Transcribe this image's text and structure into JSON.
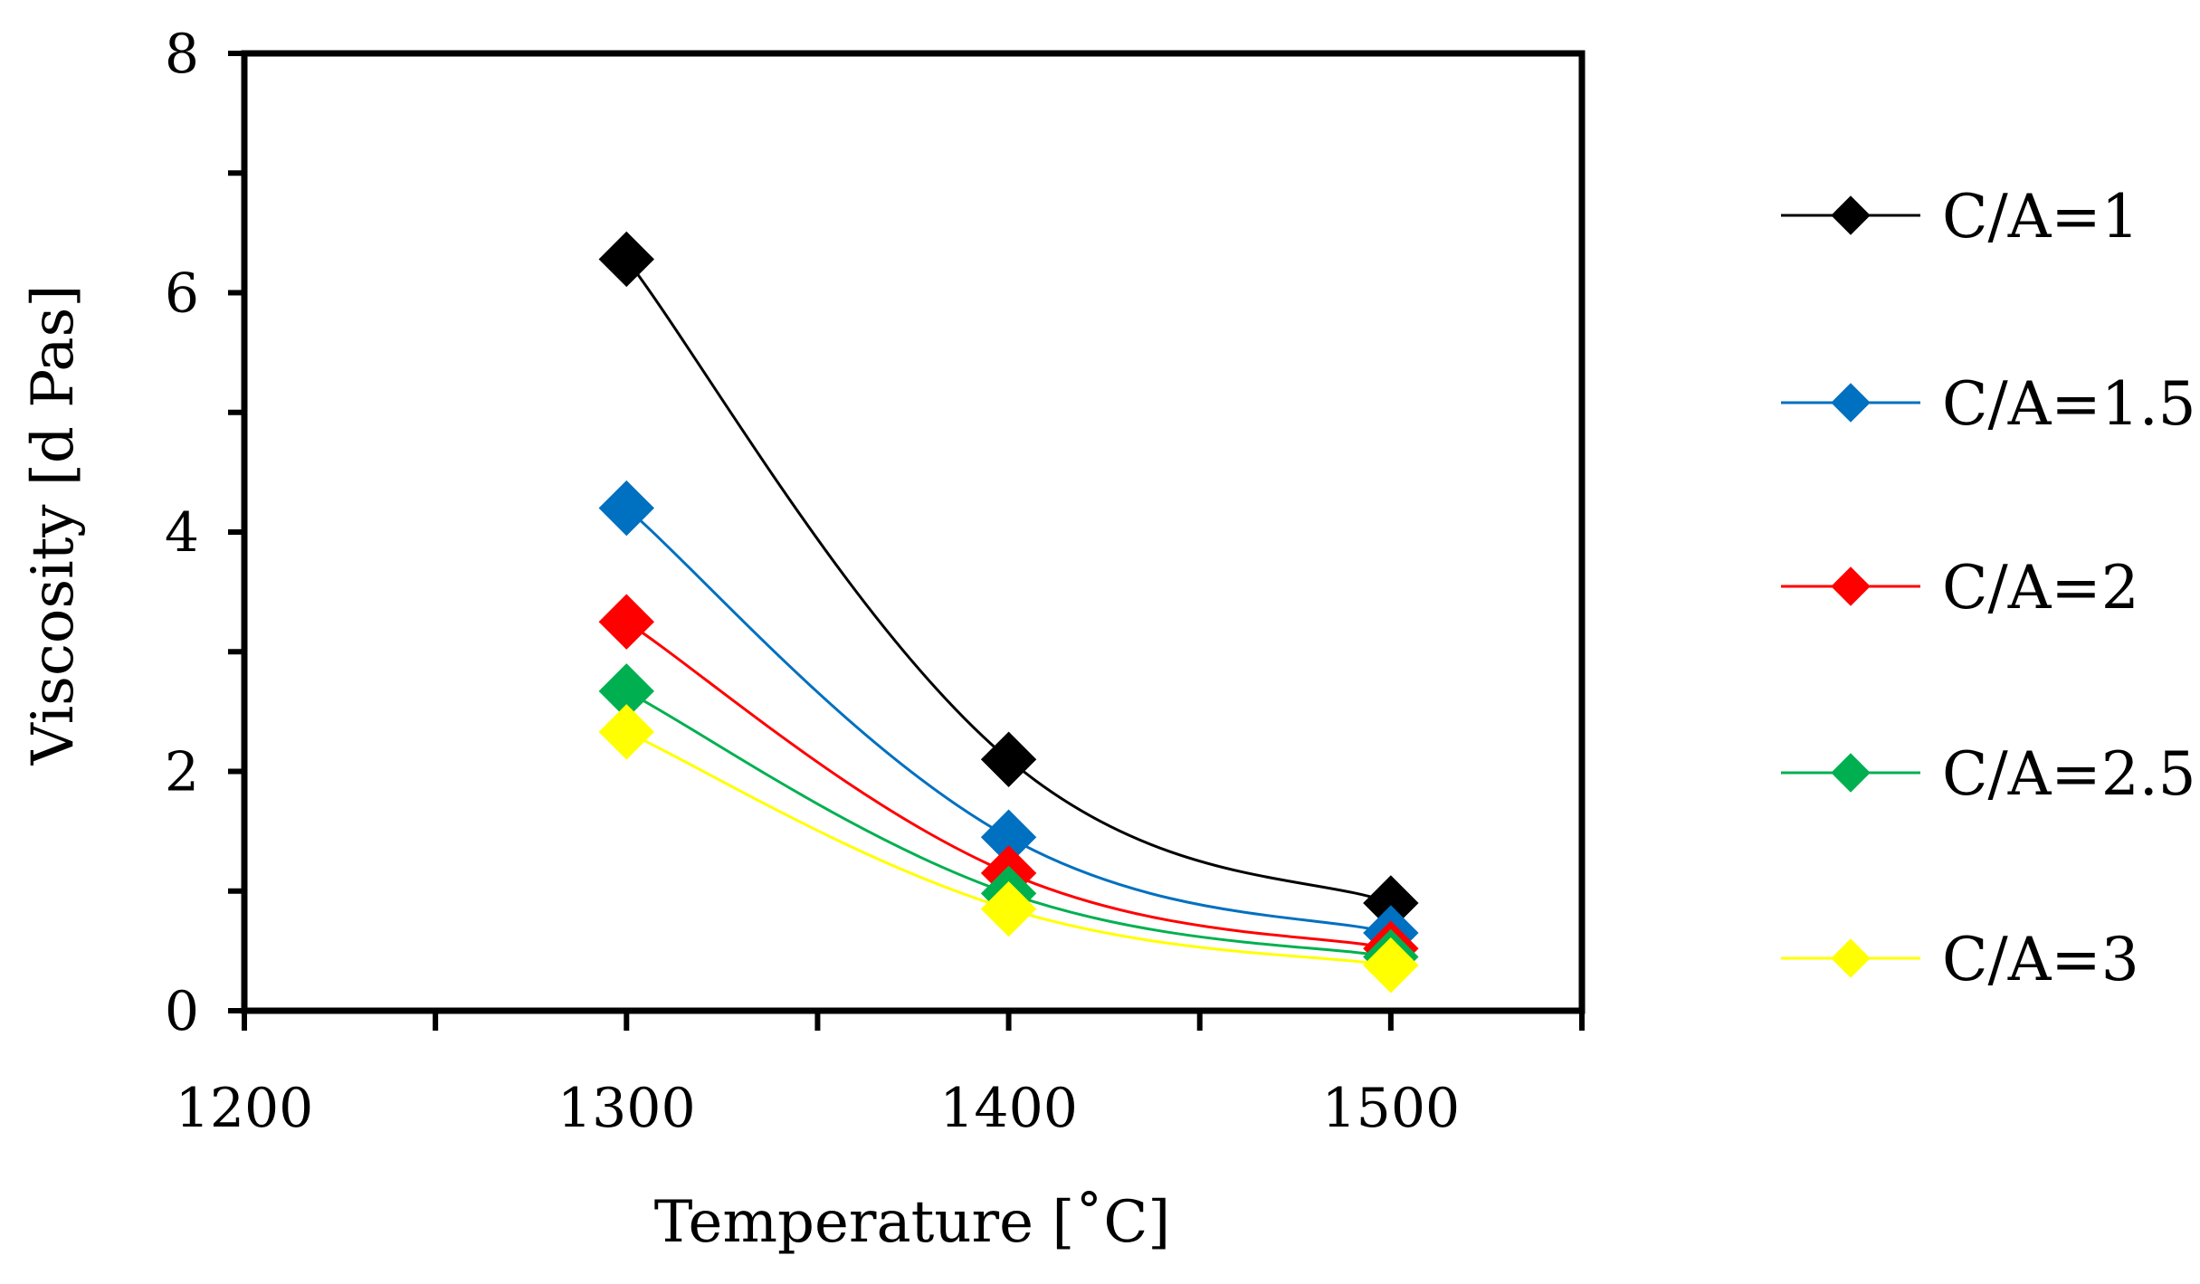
{
  "chart_data": {
    "type": "line",
    "title": "",
    "xlabel": "Temperature [˚C]",
    "ylabel": "Viscosity [d Pas]",
    "xlim": [
      1200,
      1550
    ],
    "ylim": [
      0,
      8
    ],
    "x_ticks": [
      1200,
      1300,
      1400,
      1500
    ],
    "x_tick_labels": [
      "1200",
      "1300",
      "1400",
      "1500"
    ],
    "x_minor_ticks": [
      1250,
      1350,
      1450,
      1550
    ],
    "y_ticks": [
      0,
      2,
      4,
      6,
      8
    ],
    "y_tick_labels": [
      "0",
      "2",
      "4",
      "6",
      "8"
    ],
    "y_minor_ticks": [
      1,
      3,
      5,
      7
    ],
    "grid": false,
    "legend_position": "right",
    "marker": "diamond",
    "smooth": true,
    "x": [
      1300,
      1400,
      1500
    ],
    "series": [
      {
        "name": "C/A=1",
        "color": "#000000",
        "values": [
          6.28,
          2.1,
          0.9
        ]
      },
      {
        "name": "C/A=1.5",
        "color": "#0070C0",
        "values": [
          4.2,
          1.45,
          0.65
        ]
      },
      {
        "name": "C/A=2",
        "color": "#FF0000",
        "values": [
          3.25,
          1.15,
          0.52
        ]
      },
      {
        "name": "C/A=2.5",
        "color": "#00B050",
        "values": [
          2.67,
          0.98,
          0.45
        ]
      },
      {
        "name": "C/A=3",
        "color": "#FFFF00",
        "values": [
          2.33,
          0.85,
          0.38
        ]
      }
    ]
  }
}
